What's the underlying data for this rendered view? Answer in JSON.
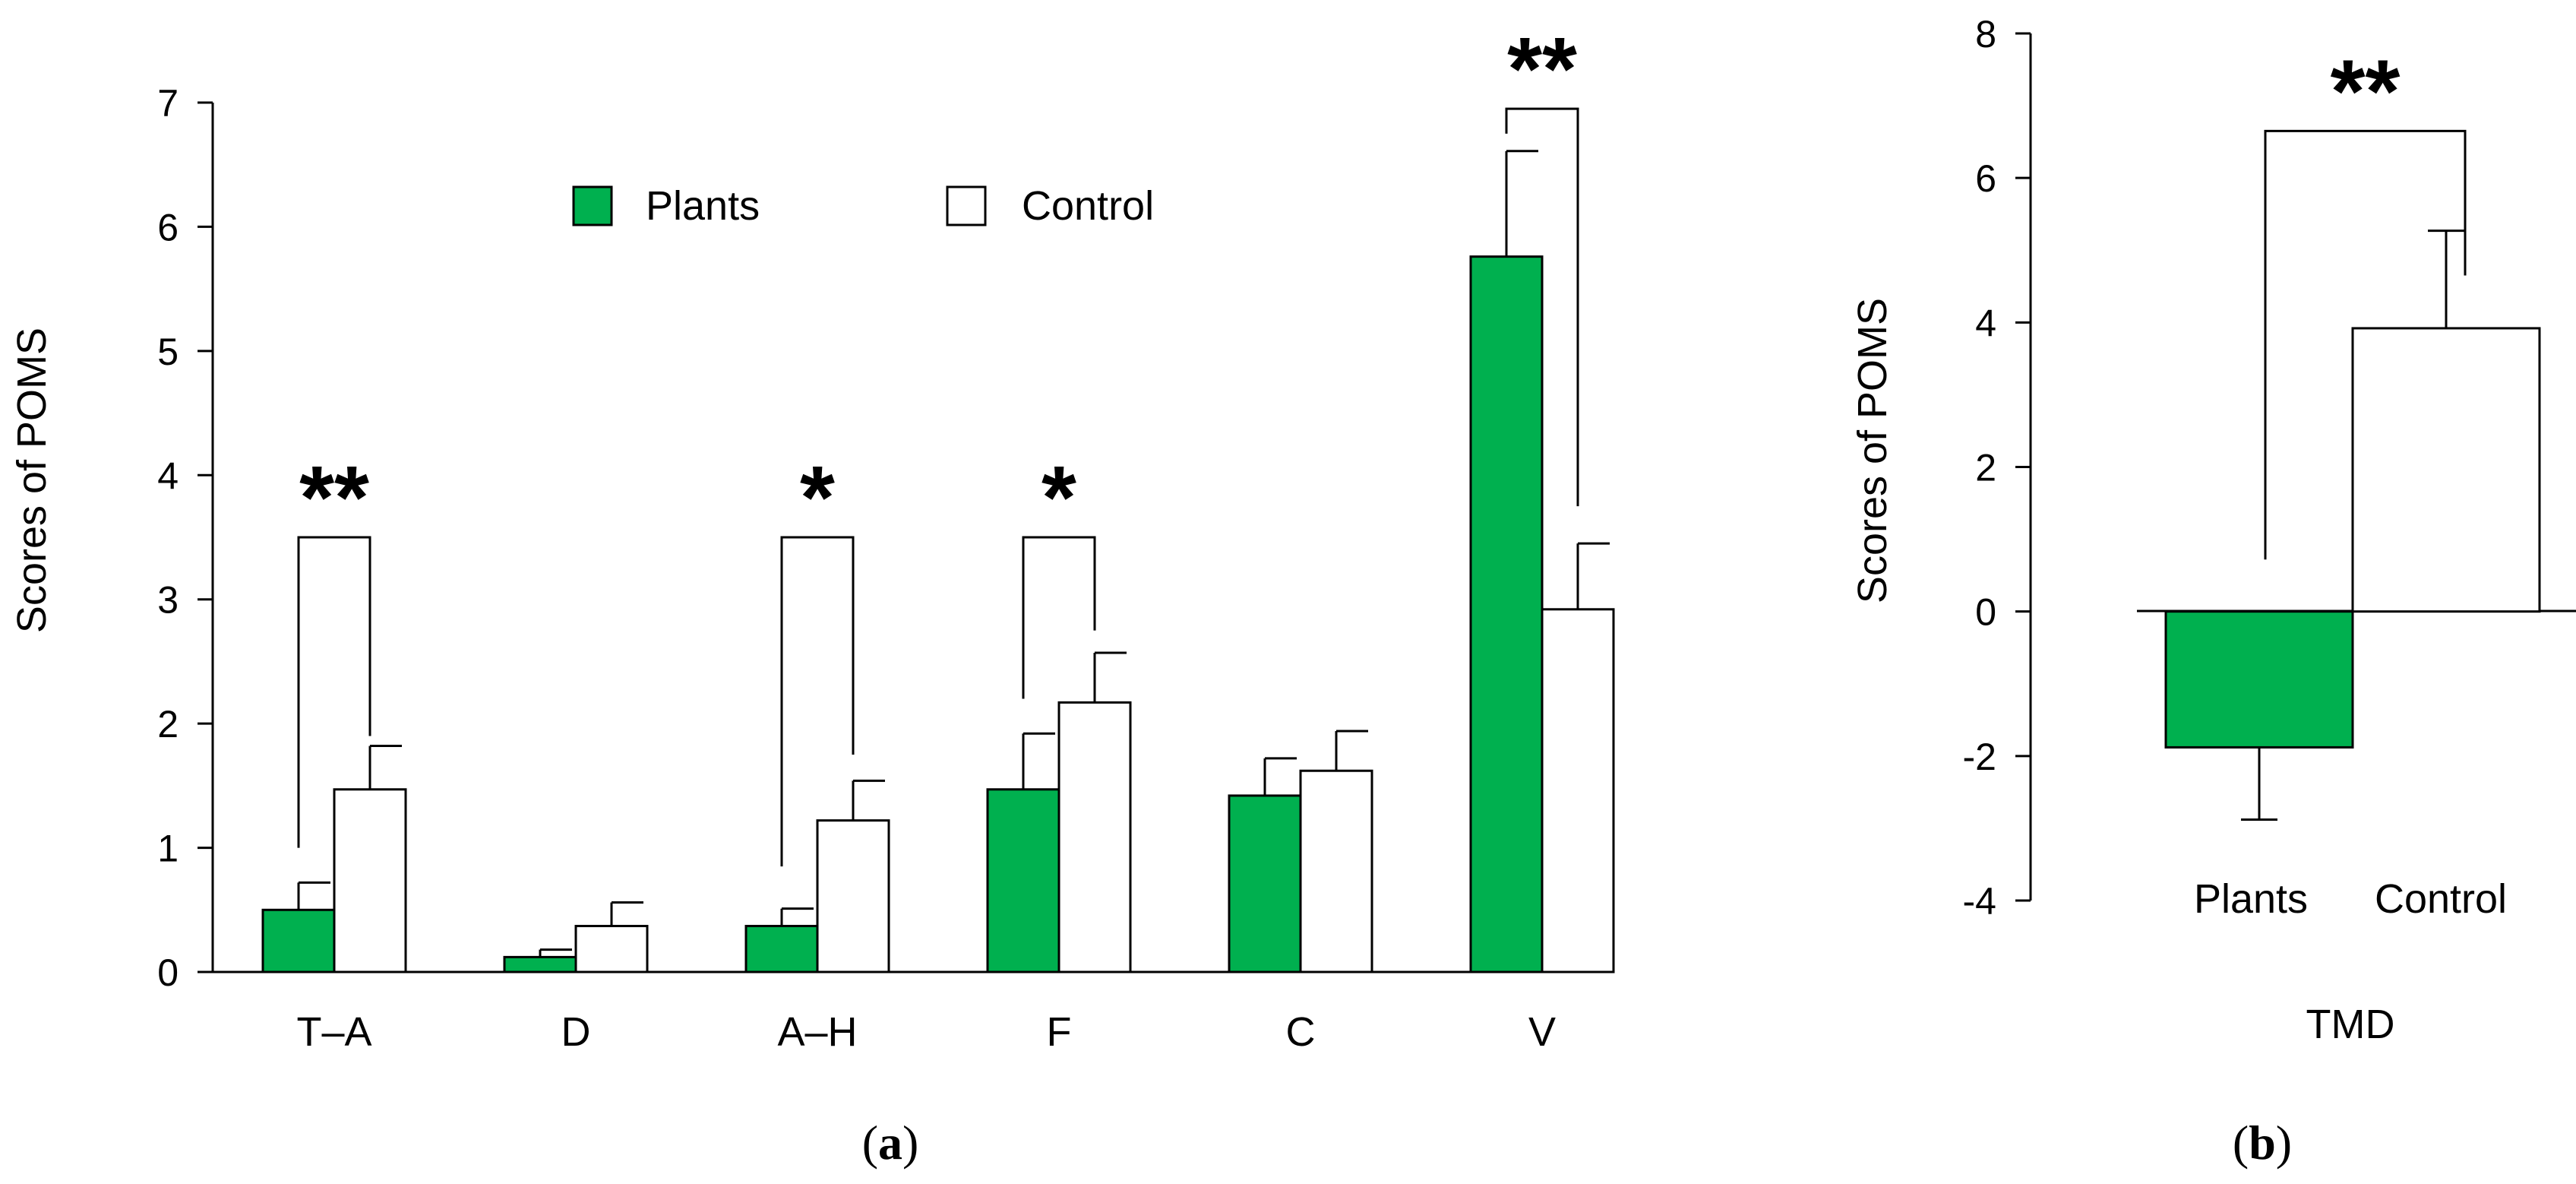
{
  "colors": {
    "plants": "#00b04f",
    "control": "#ffffff",
    "stroke": "#000000"
  },
  "chart_data": [
    {
      "type": "bar",
      "panel_label": "(a)",
      "panel_label_text": "a",
      "ylabel": "Scores of POMS",
      "xlabel": "",
      "ylim": [
        0,
        7
      ],
      "yticks": [
        0,
        1,
        2,
        3,
        4,
        5,
        6,
        7
      ],
      "legend": {
        "position": "top-center",
        "entries": [
          "Plants",
          "Control"
        ]
      },
      "categories": [
        "T–A",
        "D",
        "A–H",
        "F",
        "C",
        "V"
      ],
      "series": [
        {
          "name": "Plants",
          "values": [
            0.5,
            0.12,
            0.37,
            1.47,
            1.42,
            5.76
          ],
          "errors": [
            0.22,
            0.06,
            0.14,
            0.45,
            0.3,
            0.85
          ]
        },
        {
          "name": "Control",
          "values": [
            1.47,
            0.37,
            1.22,
            2.17,
            1.62,
            2.92
          ],
          "errors": [
            0.35,
            0.19,
            0.32,
            0.4,
            0.32,
            0.53
          ]
        }
      ],
      "significance": [
        {
          "category": "T–A",
          "label": "**",
          "plants_start": 1.0,
          "control_start": 1.9,
          "bracket": 3.5
        },
        {
          "category": "A–H",
          "label": "*",
          "plants_start": 0.85,
          "control_start": 1.75,
          "bracket": 3.5
        },
        {
          "category": "F",
          "label": "*",
          "plants_start": 2.2,
          "control_start": 2.75,
          "bracket": 3.5
        },
        {
          "category": "V",
          "label": "**",
          "plants_start": 6.75,
          "control_start": 3.75,
          "bracket": 6.95
        }
      ]
    },
    {
      "type": "bar",
      "panel_label": "(b)",
      "panel_label_text": "b",
      "ylabel": "Scores of POMS",
      "xlabel": "TMD",
      "ylim": [
        -4,
        8
      ],
      "yticks": [
        -4,
        -2,
        0,
        2,
        4,
        6,
        8
      ],
      "categories": [
        "Plants",
        "Control"
      ],
      "values": [
        -1.88,
        3.92
      ],
      "errors": [
        1.0,
        1.35
      ],
      "significance": {
        "label": "**",
        "plants_start": 0.72,
        "control_start": 4.65,
        "bracket": 6.65
      }
    }
  ]
}
